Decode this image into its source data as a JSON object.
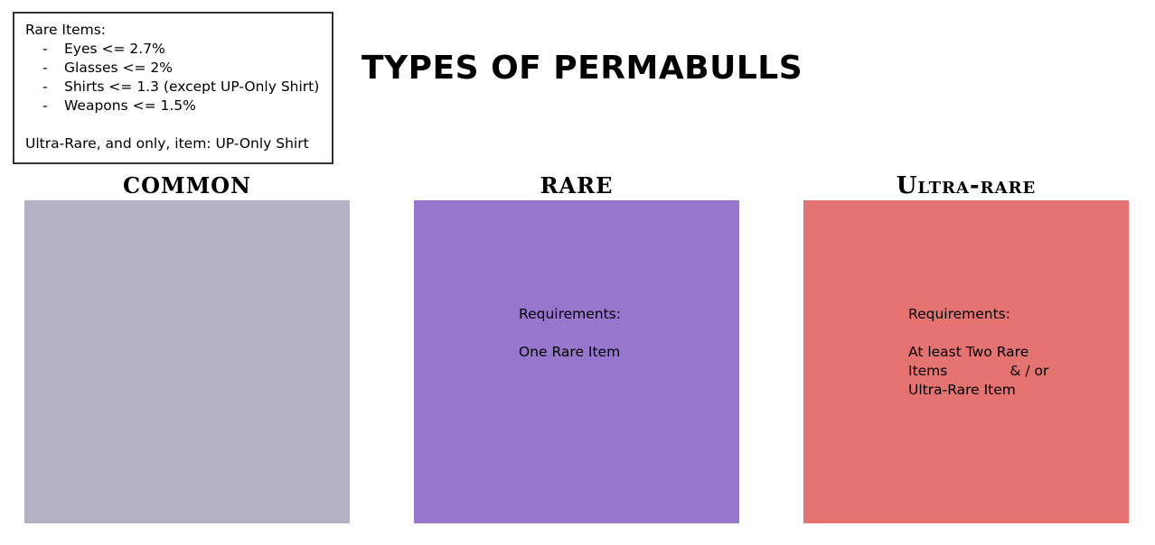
{
  "legend": {
    "heading": "Rare Items:",
    "items": [
      {
        "bullet": "-",
        "text": "Eyes <= 2.7%"
      },
      {
        "bullet": "-",
        "text": "Glasses <= 2%"
      },
      {
        "bullet": "-",
        "text": "Shirts <= 1.3 (except UP-Only Shirt)"
      },
      {
        "bullet": "-",
        "text": "Weapons <= 1.5%"
      }
    ],
    "footer": "Ultra-Rare, and only, item: UP-Only Shirt"
  },
  "title": "TYPES OF PERMABULLS",
  "tiers": [
    {
      "title": "COMMON",
      "color": "#b3b1c3",
      "requirements_label": "",
      "requirements_text": ""
    },
    {
      "title": "RARE",
      "color": "#9677cd",
      "requirements_label": "Requirements:",
      "requirements_text": "One Rare Item"
    },
    {
      "title": "Ultra-rare",
      "color": "#e57372",
      "requirements_label": "Requirements:",
      "requirements_text": "At least Two Rare Items              & / or Ultra-Rare Item"
    }
  ]
}
